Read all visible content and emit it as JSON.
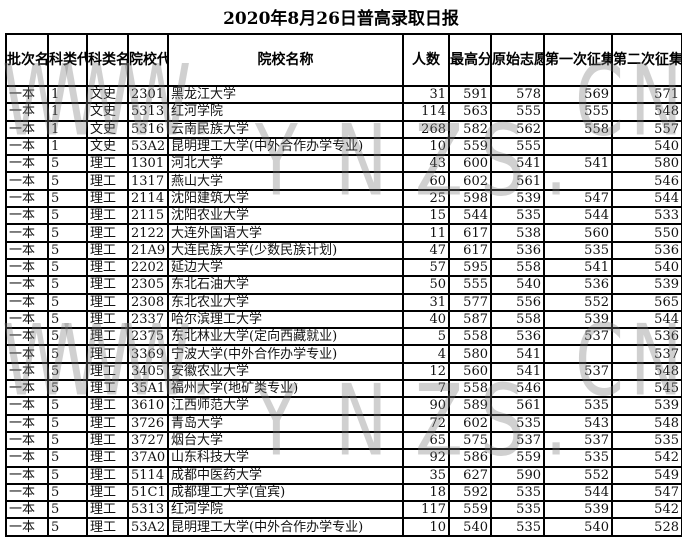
{
  "title": "2020年8月26日普高录取日报",
  "headers": [
    "批次名称",
    "科类代码",
    "科类名称",
    "院校代码",
    "院校名称",
    "人数",
    "最高分",
    "原始志愿最低分",
    "第一次征集志愿最低分",
    "第二次征集志愿最低分"
  ],
  "rows": [
    [
      "一本",
      "1",
      "文史",
      "2301",
      "黑龙江大学",
      "31",
      "591",
      "578",
      "569",
      "571"
    ],
    [
      "一本",
      "1",
      "文史",
      "5313",
      "红河学院",
      "114",
      "563",
      "555",
      "555",
      "548"
    ],
    [
      "一本",
      "1",
      "文史",
      "5316",
      "云南民族大学",
      "268",
      "582",
      "562",
      "558",
      "557"
    ],
    [
      "一本",
      "1",
      "文史",
      "53A2",
      "昆明理工大学(中外合作办学专业)",
      "10",
      "559",
      "555",
      "",
      "540"
    ],
    [
      "一本",
      "5",
      "理工",
      "1301",
      "河北大学",
      "43",
      "600",
      "541",
      "541",
      "580"
    ],
    [
      "一本",
      "5",
      "理工",
      "1317",
      "燕山大学",
      "60",
      "602",
      "561",
      "",
      "546"
    ],
    [
      "一本",
      "5",
      "理工",
      "2114",
      "沈阳建筑大学",
      "25",
      "598",
      "539",
      "547",
      "544"
    ],
    [
      "一本",
      "5",
      "理工",
      "2115",
      "沈阳农业大学",
      "15",
      "544",
      "535",
      "544",
      "533"
    ],
    [
      "一本",
      "5",
      "理工",
      "2122",
      "大连外国语大学",
      "11",
      "617",
      "538",
      "560",
      "550"
    ],
    [
      "一本",
      "5",
      "理工",
      "21A9",
      "大连民族大学(少数民族计划)",
      "47",
      "617",
      "536",
      "535",
      "536"
    ],
    [
      "一本",
      "5",
      "理工",
      "2202",
      "延边大学",
      "57",
      "595",
      "558",
      "541",
      "540"
    ],
    [
      "一本",
      "5",
      "理工",
      "2305",
      "东北石油大学",
      "50",
      "555",
      "540",
      "536",
      "539"
    ],
    [
      "一本",
      "5",
      "理工",
      "2308",
      "东北农业大学",
      "31",
      "577",
      "556",
      "552",
      "565"
    ],
    [
      "一本",
      "5",
      "理工",
      "2337",
      "哈尔滨理工大学",
      "40",
      "587",
      "558",
      "539",
      "544"
    ],
    [
      "一本",
      "5",
      "理工",
      "2375",
      "东北林业大学(定向西藏就业)",
      "5",
      "558",
      "536",
      "537",
      "536"
    ],
    [
      "一本",
      "5",
      "理工",
      "3369",
      "宁波大学(中外合作办学专业)",
      "4",
      "580",
      "541",
      "",
      "537"
    ],
    [
      "一本",
      "5",
      "理工",
      "3405",
      "安徽农业大学",
      "12",
      "560",
      "541",
      "537",
      "548"
    ],
    [
      "一本",
      "5",
      "理工",
      "35A1",
      "福州大学(地矿类专业)",
      "7",
      "558",
      "546",
      "",
      "545"
    ],
    [
      "一本",
      "5",
      "理工",
      "3610",
      "江西师范大学",
      "90",
      "589",
      "561",
      "535",
      "539"
    ],
    [
      "一本",
      "5",
      "理工",
      "3726",
      "青岛大学",
      "72",
      "602",
      "535",
      "543",
      "548"
    ],
    [
      "一本",
      "5",
      "理工",
      "3727",
      "烟台大学",
      "65",
      "575",
      "537",
      "537",
      "535"
    ],
    [
      "一本",
      "5",
      "理工",
      "37A0",
      "山东科技大学",
      "92",
      "586",
      "559",
      "535",
      "542"
    ],
    [
      "一本",
      "5",
      "理工",
      "5114",
      "成都中医药大学",
      "35",
      "627",
      "590",
      "552",
      "549"
    ],
    [
      "一本",
      "5",
      "理工",
      "51C1",
      "成都理工大学(宜宾)",
      "18",
      "592",
      "535",
      "544",
      "547"
    ],
    [
      "一本",
      "5",
      "理工",
      "5313",
      "红河学院",
      "117",
      "559",
      "535",
      "539",
      "542"
    ],
    [
      "一本",
      "5",
      "理工",
      "53A2",
      "昆明理工大学(中外合作办学专业)",
      "10",
      "540",
      "535",
      "540",
      "528"
    ]
  ],
  "watermark": [
    "W",
    "W",
    "W",
    ".",
    "Y",
    "N",
    "Z",
    "S",
    ".",
    "C",
    "N"
  ]
}
